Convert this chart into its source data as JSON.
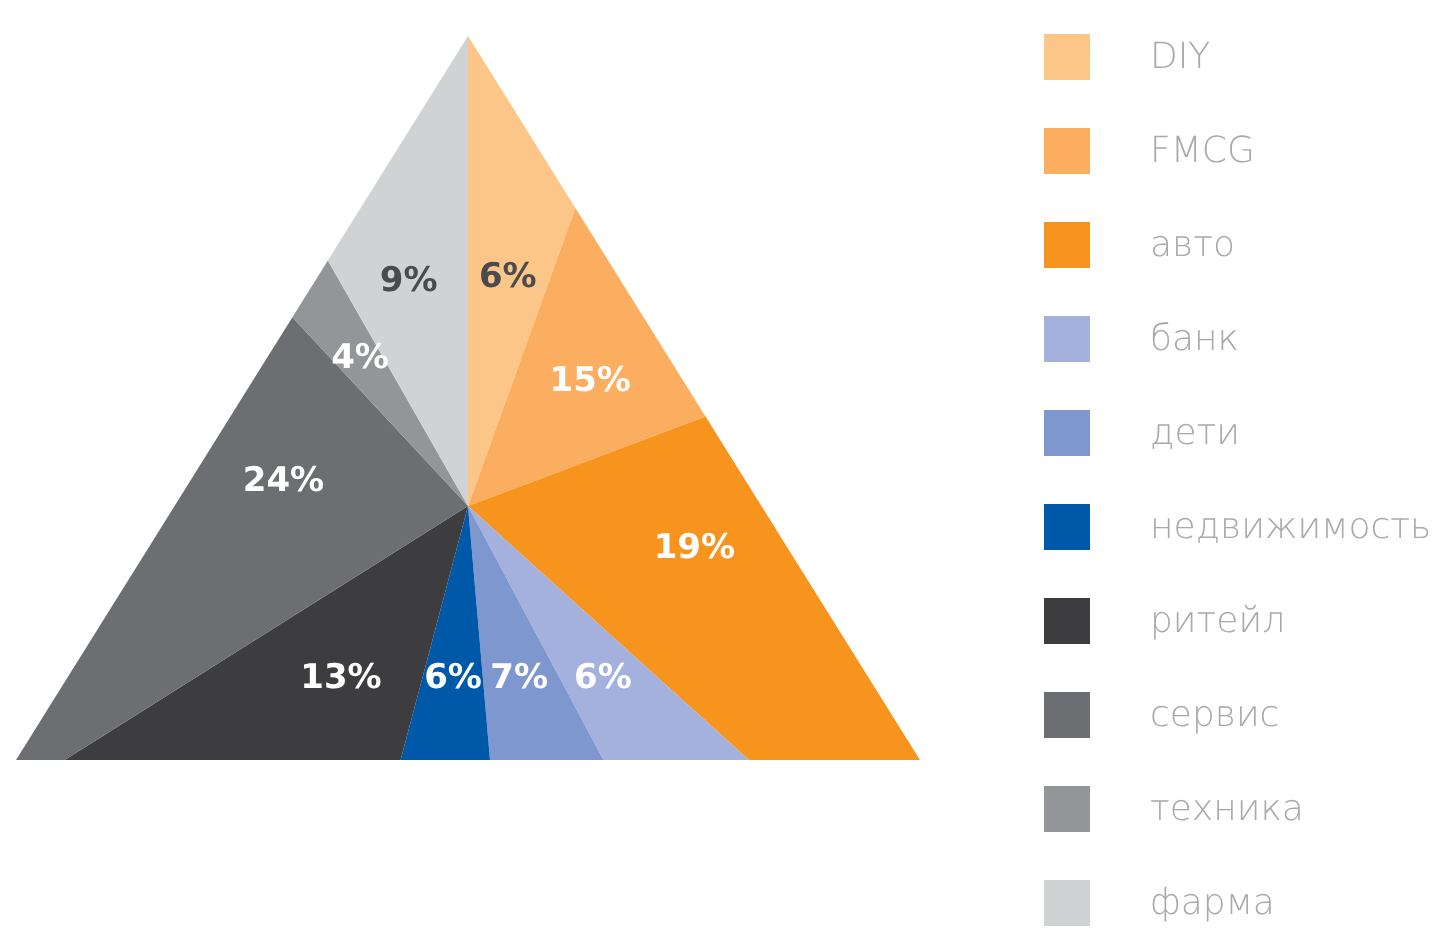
{
  "chart_data": {
    "type": "pie",
    "categories": [
      "DIY",
      "FMCG",
      "авто",
      "банк",
      "дети",
      "недвижимость",
      "ритейл",
      "сервис",
      "техника",
      "фарма"
    ],
    "values": [
      6,
      15,
      19,
      6,
      7,
      6,
      13,
      24,
      4,
      9
    ],
    "value_labels": [
      "6%",
      "15%",
      "19%",
      "6%",
      "7%",
      "6%",
      "13%",
      "24%",
      "4%",
      "9%"
    ],
    "colors": [
      "#fdc689",
      "#fbae60",
      "#f7941d",
      "#a3b1dc",
      "#7f97cf",
      "#0059a8",
      "#3d3d3f",
      "#6d6e71",
      "#939598",
      "#d1d2d4"
    ],
    "legend": "right"
  }
}
